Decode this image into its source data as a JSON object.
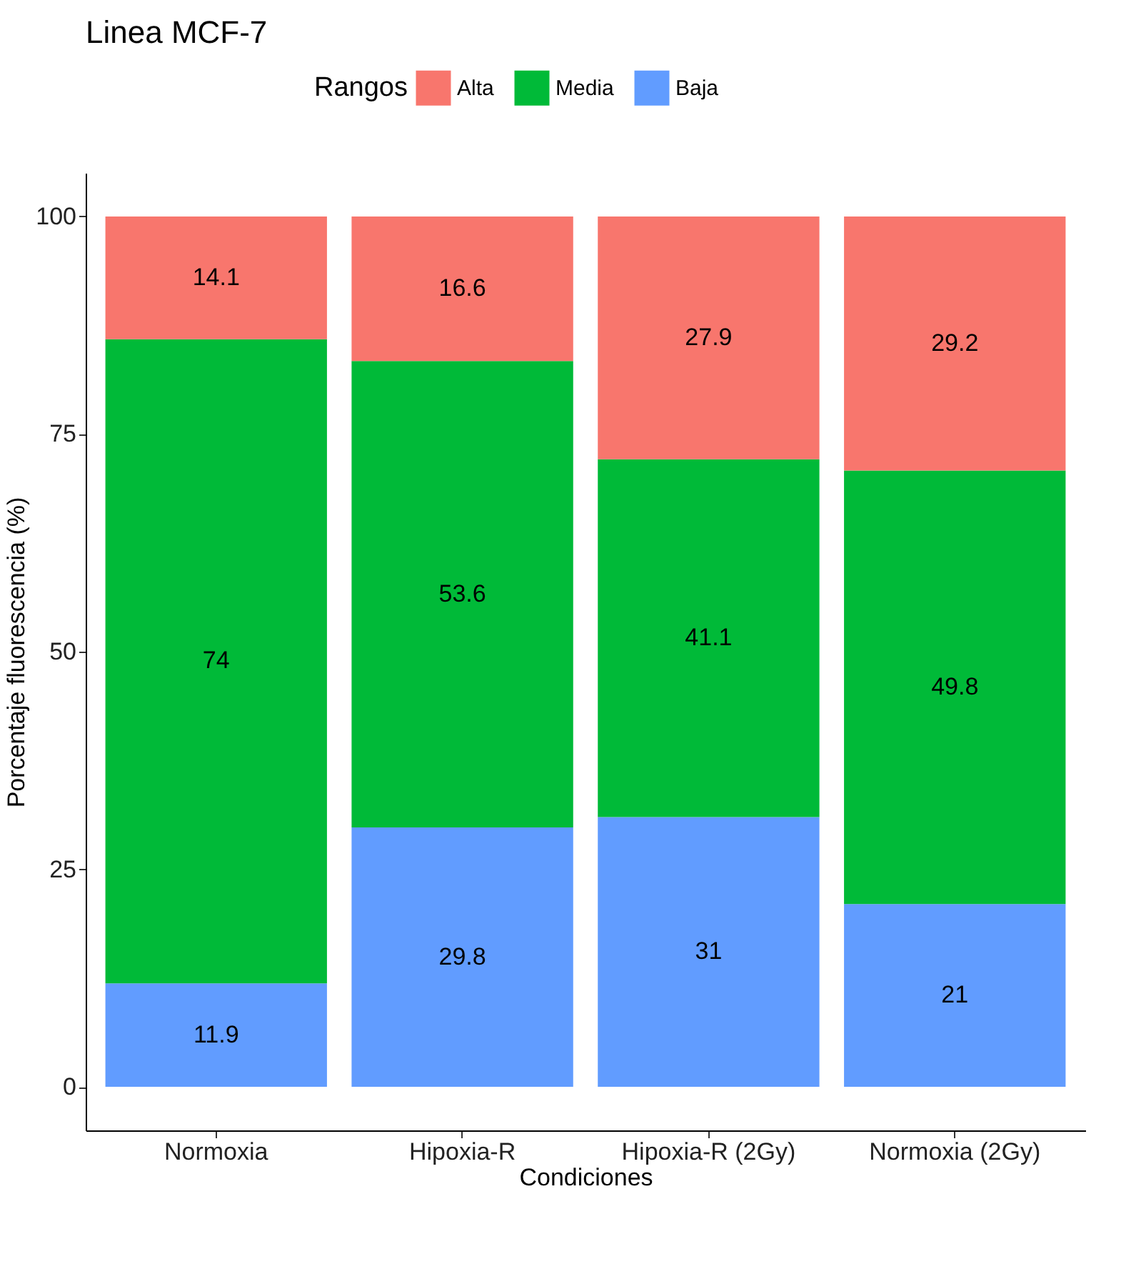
{
  "chart_data": {
    "type": "bar",
    "title": "Linea MCF-7",
    "xlabel": "Condiciones",
    "ylabel": "Porcentaje fluorescencia (%)",
    "legend_title": "Rangos",
    "categories": [
      "Normoxia",
      "Hipoxia-R",
      "Hipoxia-R (2Gy)",
      "Normoxia (2Gy)"
    ],
    "series": [
      {
        "name": "Baja",
        "color": "#619cff",
        "values": [
          11.9,
          29.8,
          31,
          21
        ]
      },
      {
        "name": "Media",
        "color": "#00ba38",
        "values": [
          74,
          53.6,
          41.1,
          49.8
        ]
      },
      {
        "name": "Alta",
        "color": "#f8766d",
        "values": [
          14.1,
          16.6,
          27.9,
          29.2
        ]
      }
    ],
    "stacked": true,
    "data_labels": true,
    "ylim": [
      -5,
      105
    ],
    "yticks": [
      0,
      25,
      50,
      75,
      100
    ],
    "grid": false,
    "legend": "top"
  }
}
